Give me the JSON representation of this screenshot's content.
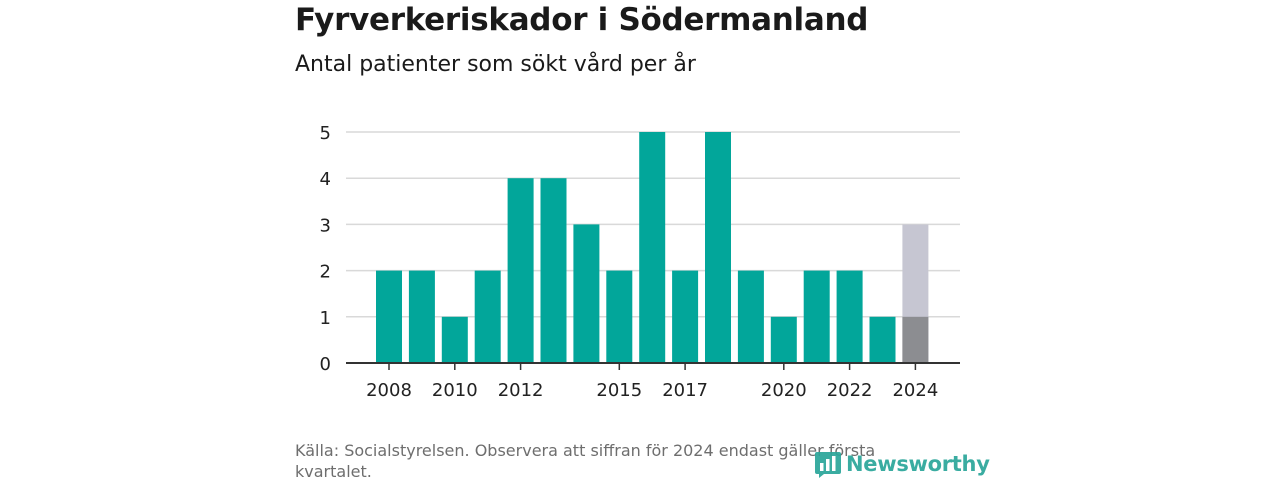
{
  "header": {
    "title": "Fyrverkeriskador i Södermanland",
    "subtitle": "Antal patienter som sökt vård per år"
  },
  "footer": {
    "source": "Källa: Socialstyrelsen. Observera att siffran för 2024 endast gäller första kvartalet.",
    "logo_text": "Newsworthy"
  },
  "colors": {
    "bar": "#02a69a",
    "partial_bar_actual": "#8c8d91",
    "partial_bar_estimate": "#c6c6d2",
    "grid": "#d9d9d9",
    "axis": "#333333"
  },
  "chart_data": {
    "type": "bar",
    "title": "Fyrverkeriskador i Södermanland",
    "subtitle": "Antal patienter som sökt vård per år",
    "categories": [
      "2008",
      "2009",
      "2010",
      "2011",
      "2012",
      "2013",
      "2014",
      "2015",
      "2016",
      "2017",
      "2018",
      "2019",
      "2020",
      "2021",
      "2022",
      "2023",
      "2024"
    ],
    "values": [
      2,
      2,
      1,
      2,
      4,
      4,
      3,
      2,
      5,
      2,
      5,
      2,
      1,
      2,
      2,
      1,
      1
    ],
    "partial_estimate": {
      "category": "2024",
      "value": 3
    },
    "x_tick_labels": [
      "2008",
      "2010",
      "2012",
      "2015",
      "2017",
      "2020",
      "2022",
      "2024"
    ],
    "y_ticks": [
      0,
      1,
      2,
      3,
      4,
      5
    ],
    "ylim": [
      0,
      5
    ],
    "grid": true,
    "xlabel": "",
    "ylabel": ""
  }
}
